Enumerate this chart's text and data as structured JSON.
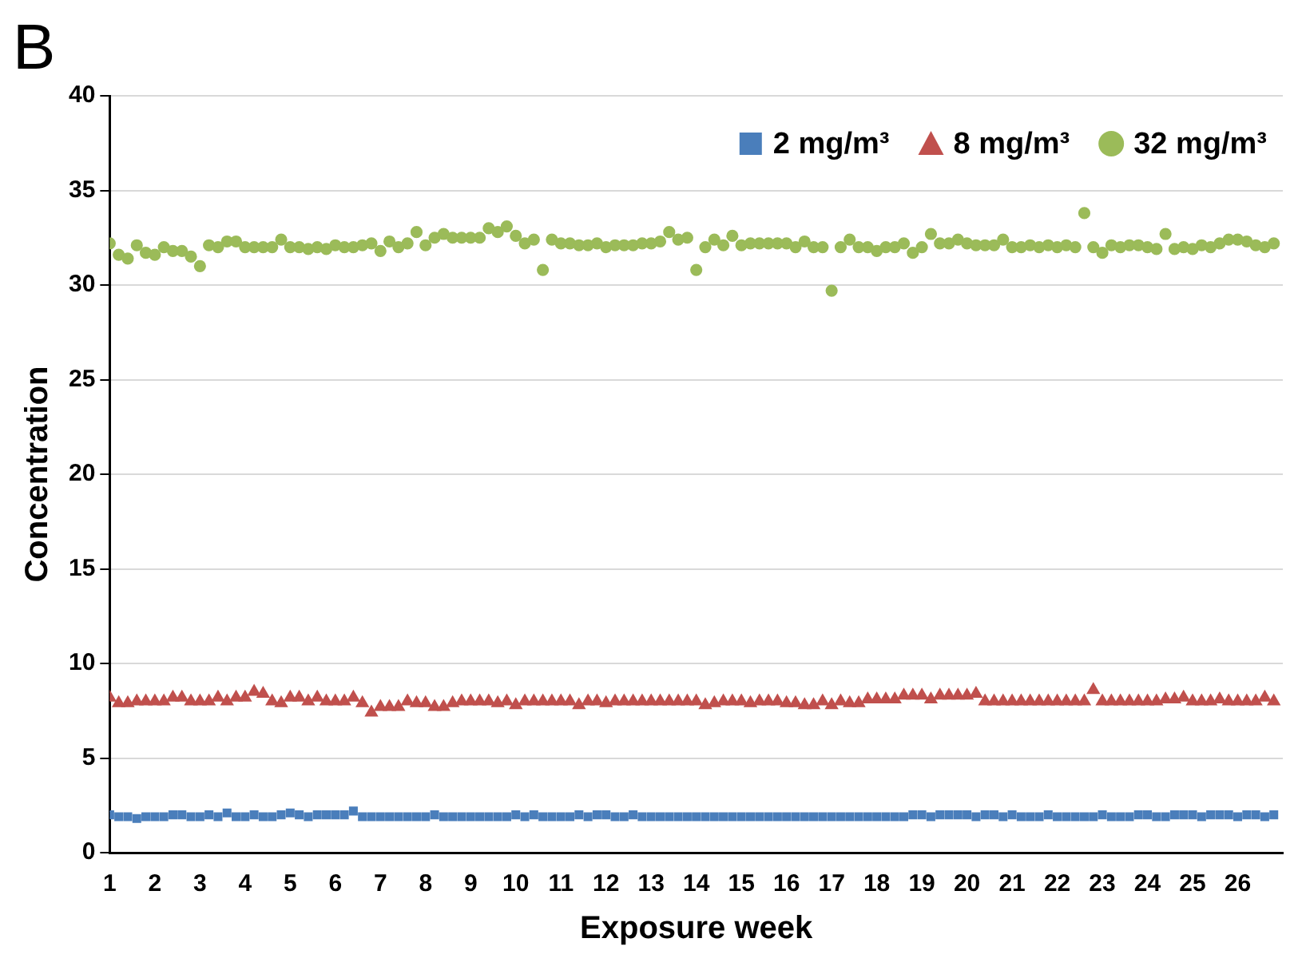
{
  "chart_data": {
    "type": "scatter",
    "title": "B",
    "xlabel": "Exposure week",
    "ylabel": "Concentration",
    "x": [
      1,
      1.2,
      1.4,
      1.6,
      1.8,
      2,
      2.2,
      2.4,
      2.6,
      2.8,
      3,
      3.2,
      3.4,
      3.6,
      3.8,
      4,
      4.2,
      4.4,
      4.6,
      4.8,
      5,
      5.2,
      5.4,
      5.6,
      5.8,
      6,
      6.2,
      6.4,
      6.6,
      6.8,
      7,
      7.2,
      7.4,
      7.6,
      7.8,
      8,
      8.2,
      8.4,
      8.6,
      8.8,
      9,
      9.2,
      9.4,
      9.6,
      9.8,
      10,
      10.2,
      10.4,
      10.6,
      10.8,
      11,
      11.2,
      11.4,
      11.6,
      11.8,
      12,
      12.2,
      12.4,
      12.6,
      12.8,
      13,
      13.2,
      13.4,
      13.6,
      13.8,
      14,
      14.2,
      14.4,
      14.6,
      14.8,
      15,
      15.2,
      15.4,
      15.6,
      15.8,
      16,
      16.2,
      16.4,
      16.6,
      16.8,
      17,
      17.2,
      17.4,
      17.6,
      17.8,
      18,
      18.2,
      18.4,
      18.6,
      18.8,
      19,
      19.2,
      19.4,
      19.6,
      19.8,
      20,
      20.2,
      20.4,
      20.6,
      20.8,
      21,
      21.2,
      21.4,
      21.6,
      21.8,
      22,
      22.2,
      22.4,
      22.6,
      22.8,
      23,
      23.2,
      23.4,
      23.6,
      23.8,
      24,
      24.2,
      24.4,
      24.6,
      24.8,
      25,
      25.2,
      25.4,
      25.6,
      25.8,
      26,
      26.2,
      26.4,
      26.6,
      26.8
    ],
    "series": [
      {
        "name": "2 mg/m³",
        "color": "#4a7ebb",
        "marker": "square",
        "values": [
          2.0,
          1.9,
          1.9,
          1.8,
          1.9,
          1.9,
          1.9,
          2.0,
          2.0,
          1.9,
          1.9,
          2.0,
          1.9,
          2.1,
          1.9,
          1.9,
          2.0,
          1.9,
          1.9,
          2.0,
          2.1,
          2.0,
          1.9,
          2.0,
          2.0,
          2.0,
          2.0,
          2.2,
          1.9,
          1.9,
          1.9,
          1.9,
          1.9,
          1.9,
          1.9,
          1.9,
          2.0,
          1.9,
          1.9,
          1.9,
          1.9,
          1.9,
          1.9,
          1.9,
          1.9,
          2.0,
          1.9,
          2.0,
          1.9,
          1.9,
          1.9,
          1.9,
          2.0,
          1.9,
          2.0,
          2.0,
          1.9,
          1.9,
          2.0,
          1.9,
          1.9,
          1.9,
          1.9,
          1.9,
          1.9,
          1.9,
          1.9,
          1.9,
          1.9,
          1.9,
          1.9,
          1.9,
          1.9,
          1.9,
          1.9,
          1.9,
          1.9,
          1.9,
          1.9,
          1.9,
          1.9,
          1.9,
          1.9,
          1.9,
          1.9,
          1.9,
          1.9,
          1.9,
          1.9,
          2.0,
          2.0,
          1.9,
          2.0,
          2.0,
          2.0,
          2.0,
          1.9,
          2.0,
          2.0,
          1.9,
          2.0,
          1.9,
          1.9,
          1.9,
          2.0,
          1.9,
          1.9,
          1.9,
          1.9,
          1.9,
          2.0,
          1.9,
          1.9,
          1.9,
          2.0,
          2.0,
          1.9,
          1.9,
          2.0,
          2.0,
          2.0,
          1.9,
          2.0,
          2.0,
          2.0,
          1.9,
          2.0,
          2.0,
          1.9,
          2.0
        ]
      },
      {
        "name": "8 mg/m³",
        "color": "#c0504d",
        "marker": "triangle",
        "values": [
          8.2,
          7.9,
          7.9,
          8.0,
          8.0,
          8.0,
          8.0,
          8.2,
          8.2,
          8.0,
          8.0,
          8.0,
          8.2,
          8.0,
          8.2,
          8.2,
          8.5,
          8.4,
          8.0,
          7.9,
          8.2,
          8.2,
          8.0,
          8.2,
          8.0,
          8.0,
          8.0,
          8.2,
          7.9,
          7.4,
          7.7,
          7.7,
          7.7,
          8.0,
          7.9,
          7.9,
          7.7,
          7.7,
          7.9,
          8.0,
          8.0,
          8.0,
          8.0,
          7.9,
          8.0,
          7.8,
          8.0,
          8.0,
          8.0,
          8.0,
          8.0,
          8.0,
          7.8,
          8.0,
          8.0,
          7.9,
          8.0,
          8.0,
          8.0,
          8.0,
          8.0,
          8.0,
          8.0,
          8.0,
          8.0,
          8.0,
          7.8,
          7.9,
          8.0,
          8.0,
          8.0,
          7.9,
          8.0,
          8.0,
          8.0,
          7.9,
          7.9,
          7.8,
          7.8,
          8.0,
          7.8,
          8.0,
          7.9,
          7.9,
          8.1,
          8.1,
          8.1,
          8.1,
          8.3,
          8.3,
          8.3,
          8.1,
          8.3,
          8.3,
          8.3,
          8.3,
          8.4,
          8.0,
          8.0,
          8.0,
          8.0,
          8.0,
          8.0,
          8.0,
          8.0,
          8.0,
          8.0,
          8.0,
          8.0,
          8.6,
          8.0,
          8.0,
          8.0,
          8.0,
          8.0,
          8.0,
          8.0,
          8.1,
          8.1,
          8.2,
          8.0,
          8.0,
          8.0,
          8.1,
          8.0,
          8.0,
          8.0,
          8.0,
          8.2,
          8.0
        ]
      },
      {
        "name": "32 mg/m³",
        "color": "#9bbb59",
        "marker": "circle",
        "values": [
          32.2,
          31.6,
          31.4,
          32.1,
          31.7,
          31.6,
          32.0,
          31.8,
          31.8,
          31.5,
          31.0,
          32.1,
          32.0,
          32.3,
          32.3,
          32.0,
          32.0,
          32.0,
          32.0,
          32.4,
          32.0,
          32.0,
          31.9,
          32.0,
          31.9,
          32.1,
          32.0,
          32.0,
          32.1,
          32.2,
          31.8,
          32.3,
          32.0,
          32.2,
          32.8,
          32.1,
          32.5,
          32.7,
          32.5,
          32.5,
          32.5,
          32.5,
          33.0,
          32.8,
          33.1,
          32.6,
          32.2,
          32.4,
          30.8,
          32.4,
          32.2,
          32.2,
          32.1,
          32.1,
          32.2,
          32.0,
          32.1,
          32.1,
          32.1,
          32.2,
          32.2,
          32.3,
          32.8,
          32.4,
          32.5,
          30.8,
          32.0,
          32.4,
          32.1,
          32.6,
          32.1,
          32.2,
          32.2,
          32.2,
          32.2,
          32.2,
          32.0,
          32.3,
          32.0,
          32.0,
          29.7,
          32.0,
          32.4,
          32.0,
          32.0,
          31.8,
          32.0,
          32.0,
          32.2,
          31.7,
          32.0,
          32.7,
          32.2,
          32.2,
          32.4,
          32.2,
          32.1,
          32.1,
          32.1,
          32.4,
          32.0,
          32.0,
          32.1,
          32.0,
          32.1,
          32.0,
          32.1,
          32.0,
          33.8,
          32.0,
          31.7,
          32.1,
          32.0,
          32.1,
          32.1,
          32.0,
          31.9,
          32.7,
          31.9,
          32.0,
          31.9,
          32.1,
          32.0,
          32.2,
          32.4,
          32.4,
          32.3,
          32.1,
          32.0,
          32.2
        ]
      }
    ],
    "xlim": [
      1,
      27
    ],
    "xticks": [
      1,
      2,
      3,
      4,
      5,
      6,
      7,
      8,
      9,
      10,
      11,
      12,
      13,
      14,
      15,
      16,
      17,
      18,
      19,
      20,
      21,
      22,
      23,
      24,
      25,
      26
    ],
    "ylim": [
      0,
      40
    ],
    "yticks": [
      0,
      5,
      10,
      15,
      20,
      25,
      30,
      35,
      40
    ],
    "grid": "y",
    "legend": "top right"
  }
}
